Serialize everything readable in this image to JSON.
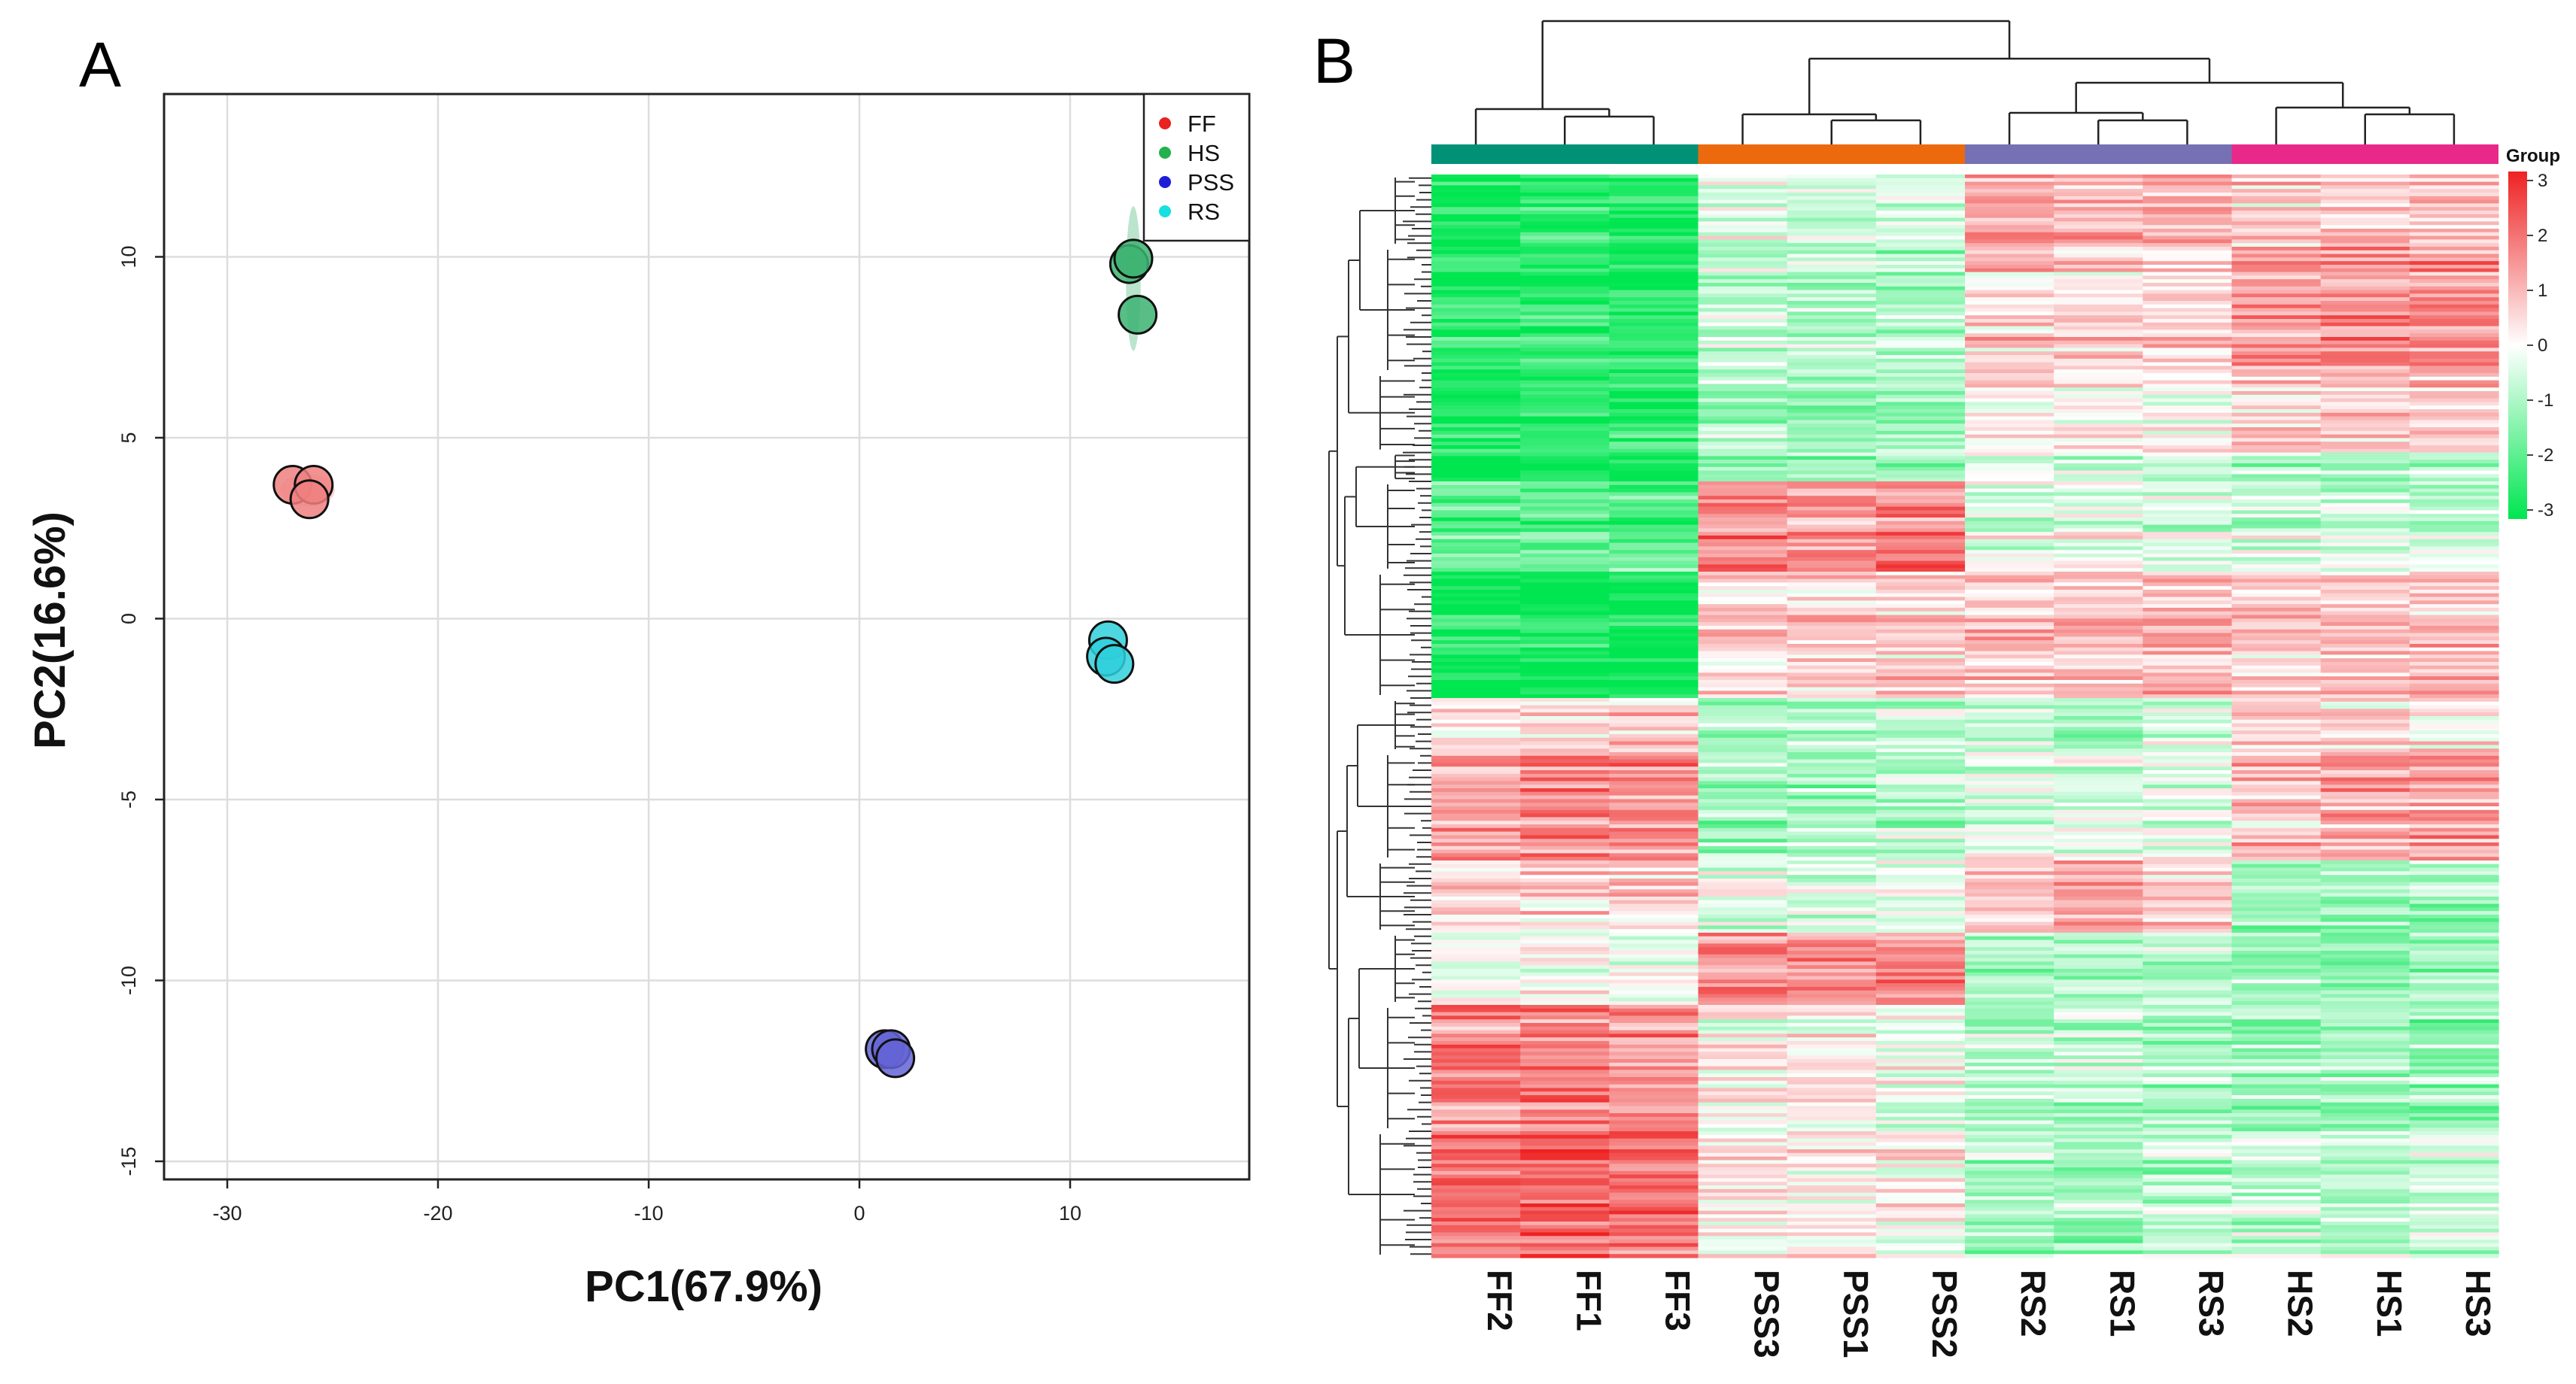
{
  "panels": {
    "a_label": "A",
    "b_label": "B"
  },
  "chart_data": [
    {
      "type": "scatter",
      "title": "",
      "xlabel": "PC1(67.9%)",
      "ylabel": "PC2(16.6%)",
      "xlim": [
        -33,
        18.5
      ],
      "ylim": [
        -15.5,
        14.5
      ],
      "xticks": [
        -30,
        -20,
        -10,
        0,
        10
      ],
      "yticks": [
        -15,
        -10,
        -5,
        0,
        5,
        10
      ],
      "grid": true,
      "legend_position": "top-right",
      "series": [
        {
          "name": "FF",
          "color": "#e8221f",
          "fill": "#f08080",
          "points": [
            [
              -26.9,
              3.7
            ],
            [
              -25.9,
              3.7
            ],
            [
              -26.1,
              3.3
            ]
          ],
          "ellipse": {
            "cx": -26.2,
            "cy": 3.55,
            "rx": 1.3,
            "ry": 0.45,
            "angle": 0
          }
        },
        {
          "name": "HS",
          "color": "#22b14c",
          "fill": "#3cb371",
          "points": [
            [
              12.8,
              9.8
            ],
            [
              13.0,
              9.95
            ],
            [
              13.2,
              8.4
            ]
          ],
          "ellipse": {
            "cx": 13.0,
            "cy": 9.4,
            "rx": 0.35,
            "ry": 2.0,
            "angle": 0
          }
        },
        {
          "name": "PSS",
          "color": "#1e1ed8",
          "fill": "#6464d6",
          "points": [
            [
              1.2,
              -11.9
            ],
            [
              1.5,
              -11.9
            ],
            [
              1.7,
              -12.15
            ]
          ],
          "ellipse": null
        },
        {
          "name": "RS",
          "color": "#16e0e0",
          "fill": "#2fd0dc",
          "points": [
            [
              11.8,
              -0.6
            ],
            [
              11.7,
              -1.05
            ],
            [
              12.1,
              -1.25
            ]
          ],
          "ellipse": null
        }
      ]
    },
    {
      "type": "heatmap",
      "columns": [
        "FF2",
        "FF1",
        "FF3",
        "PSS3",
        "PSS1",
        "PSS2",
        "RS2",
        "RS1",
        "RS3",
        "HS2",
        "HS1",
        "HS3"
      ],
      "groups": [
        {
          "name": "FF",
          "color": "#009177",
          "columns": [
            "FF2",
            "FF1",
            "FF3"
          ]
        },
        {
          "name": "PSS",
          "color": "#ec6a0d",
          "columns": [
            "PSS3",
            "PSS1",
            "PSS2"
          ]
        },
        {
          "name": "RS",
          "color": "#7571b4",
          "columns": [
            "RS2",
            "RS1",
            "RS3"
          ]
        },
        {
          "name": "HS",
          "color": "#e8298a",
          "columns": [
            "HS2",
            "HS1",
            "HS3"
          ]
        }
      ],
      "group_label": "Group",
      "color_scale": {
        "min": -3,
        "max": 3,
        "low": "#00e650",
        "mid": "#ffffff",
        "high": "#ee2222",
        "ticks": [
          "3",
          "2",
          "1",
          "0",
          "-1",
          "-2",
          "-3"
        ]
      },
      "row_blocks": [
        {
          "rows": 20,
          "values": [
            -2.8,
            -2.6,
            -2.8,
            -0.4,
            -0.6,
            -0.5,
            1.2,
            1.0,
            1.1,
            0.6,
            0.8,
            0.7
          ]
        },
        {
          "rows": 35,
          "values": [
            -2.6,
            -2.6,
            -2.6,
            -0.8,
            -0.9,
            -1.0,
            0.6,
            0.5,
            0.4,
            1.3,
            1.4,
            1.5
          ]
        },
        {
          "rows": 22,
          "values": [
            -2.4,
            -2.5,
            -2.4,
            -1.0,
            -1.0,
            -1.1,
            0.2,
            0.3,
            0.1,
            0.7,
            0.9,
            0.8
          ]
        },
        {
          "rows": 8,
          "values": [
            -2.8,
            -2.8,
            -2.8,
            -1.2,
            -1.1,
            -1.0,
            -0.3,
            -0.5,
            -0.4,
            -0.9,
            -1.0,
            -0.8
          ]
        },
        {
          "rows": 25,
          "values": [
            -1.8,
            -1.9,
            -1.8,
            1.6,
            1.5,
            1.7,
            -0.3,
            -0.2,
            -0.4,
            -0.5,
            -0.6,
            -0.5
          ]
        },
        {
          "rows": 35,
          "values": [
            -2.9,
            -2.9,
            -2.9,
            0.5,
            0.6,
            0.7,
            0.8,
            0.7,
            0.9,
            0.7,
            0.8,
            0.9
          ]
        },
        {
          "rows": 15,
          "values": [
            0.5,
            0.4,
            0.6,
            -0.8,
            -0.9,
            -0.7,
            -0.6,
            -0.8,
            -0.5,
            0.6,
            0.5,
            0.4
          ]
        },
        {
          "rows": 30,
          "values": [
            1.2,
            1.5,
            1.4,
            -1.0,
            -1.1,
            -0.9,
            -0.3,
            -0.4,
            -0.2,
            0.8,
            1.2,
            1.1
          ]
        },
        {
          "rows": 20,
          "values": [
            0.4,
            0.6,
            0.5,
            -0.5,
            -0.6,
            -0.4,
            0.9,
            1.0,
            0.8,
            -1.2,
            -1.3,
            -1.1
          ]
        },
        {
          "rows": 20,
          "values": [
            -0.2,
            0.1,
            -0.1,
            1.5,
            1.4,
            1.6,
            -0.9,
            -1.0,
            -0.8,
            -1.2,
            -1.4,
            -1.1
          ]
        },
        {
          "rows": 35,
          "values": [
            1.6,
            1.8,
            1.5,
            0.1,
            0.2,
            -0.1,
            -0.9,
            -0.8,
            -1.0,
            -1.1,
            -1.0,
            -1.2
          ]
        },
        {
          "rows": 35,
          "values": [
            1.9,
            2.1,
            1.9,
            0.2,
            0.1,
            0.2,
            -1.0,
            -1.1,
            -0.9,
            -0.7,
            -0.8,
            -0.6
          ]
        }
      ]
    }
  ]
}
